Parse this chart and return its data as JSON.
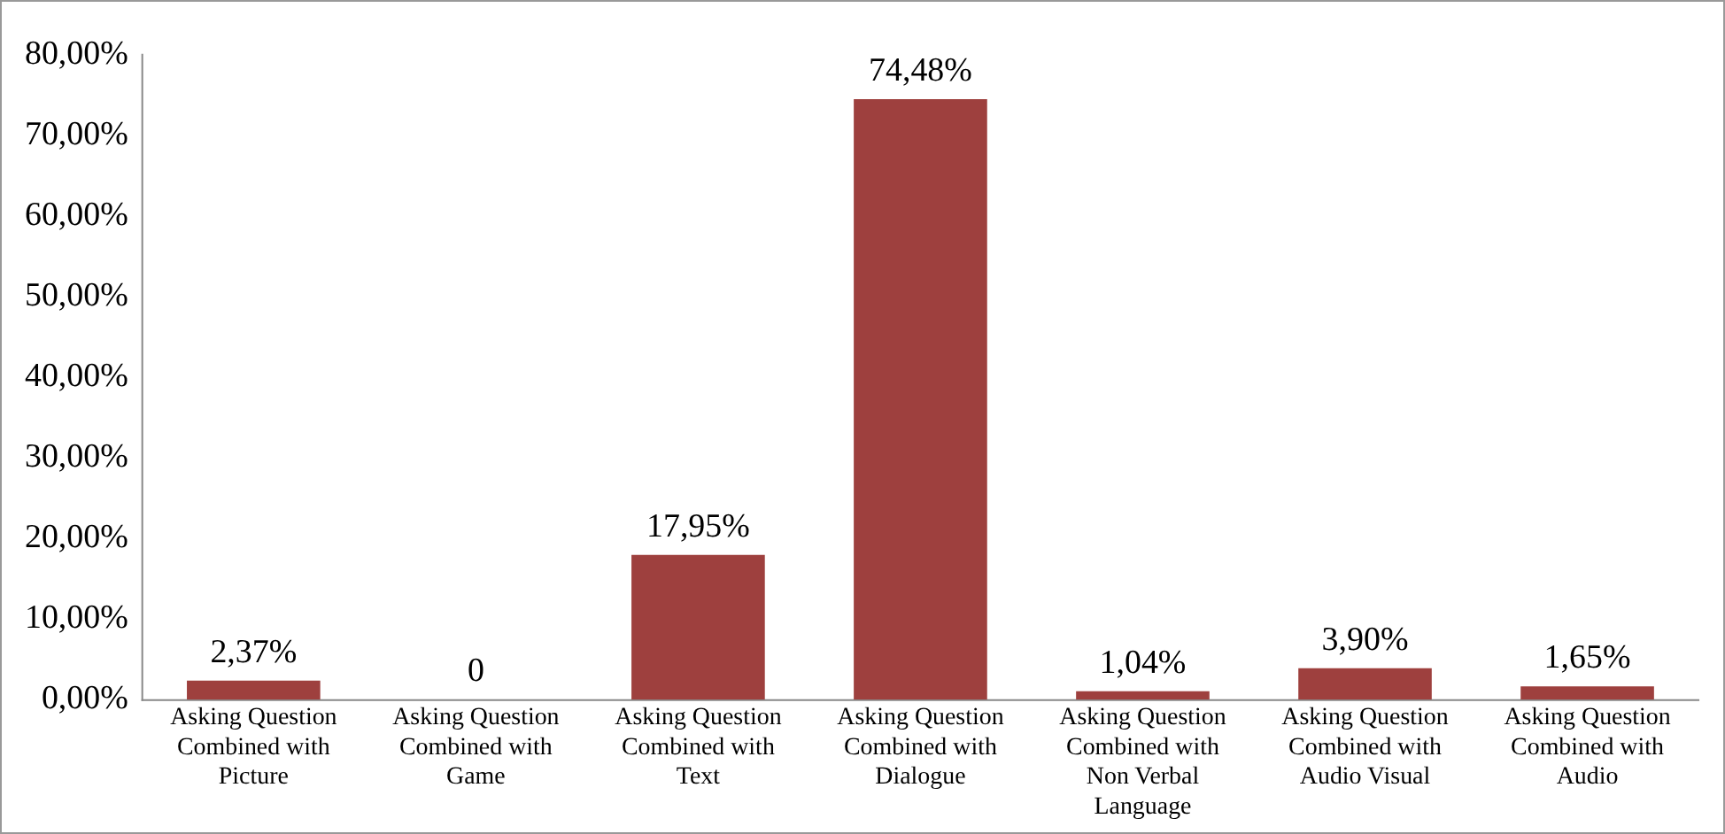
{
  "chart_data": {
    "type": "bar",
    "categories": [
      "Asking Question Combined with Picture",
      "Asking Question Combined with Game",
      "Asking Question Combined with Text",
      "Asking Question Combined with Dialogue",
      "Asking Question Combined with Non Verbal Language",
      "Asking Question Combined with Audio Visual",
      "Asking Question Combined with Audio"
    ],
    "values": [
      2.37,
      0,
      17.95,
      74.48,
      1.04,
      3.9,
      1.65
    ],
    "value_labels": [
      "2,37%",
      "0",
      "17,95%",
      "74,48%",
      "1,04%",
      "3,90%",
      "1,65%"
    ],
    "color": "#9e403e",
    "ylim": [
      0,
      80
    ],
    "yticks": [
      {
        "value": 0,
        "label": "0,00%"
      },
      {
        "value": 10,
        "label": "10,00%"
      },
      {
        "value": 20,
        "label": "20,00%"
      },
      {
        "value": 30,
        "label": "30,00%"
      },
      {
        "value": 40,
        "label": "40,00%"
      },
      {
        "value": 50,
        "label": "50,00%"
      },
      {
        "value": 60,
        "label": "60,00%"
      },
      {
        "value": 70,
        "label": "70,00%"
      },
      {
        "value": 80,
        "label": "80,00%"
      }
    ],
    "grid": false,
    "legend": false
  }
}
